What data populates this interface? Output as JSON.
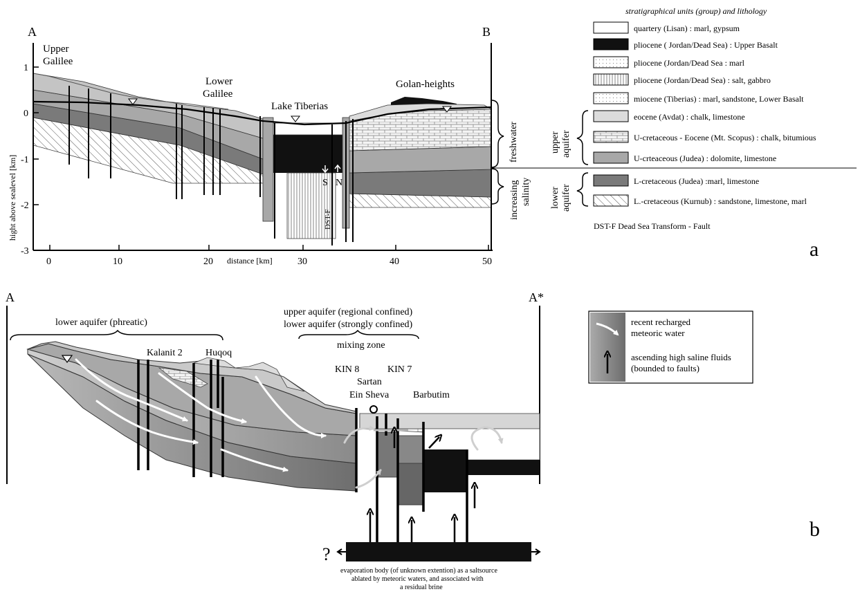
{
  "panel_a": {
    "label_a": "A",
    "label_b": "B",
    "panel_letter": "a",
    "y_axis_label": "hight above sealevel [km]",
    "x_axis_label": "distance [km]",
    "y_ticks": [
      "1",
      "0",
      "-1",
      "-2",
      "-3"
    ],
    "x_ticks": [
      "0",
      "10",
      "20",
      "30",
      "40",
      "50"
    ],
    "places": {
      "upper_galilee": [
        "Upper",
        "Galilee"
      ],
      "lower_galilee": [
        "Lower",
        "Galilee"
      ],
      "lake_tiberias": "Lake Tiberias",
      "golan_heights": "Golan-heights"
    },
    "fault_labels": {
      "s": "S",
      "n": "N",
      "dst": "DST-F"
    },
    "brace_labels": {
      "freshwater": "freshwater",
      "salinity": [
        "increasing",
        "salinity"
      ],
      "upper_aquifer": [
        "upper",
        "aquifer"
      ],
      "lower_aquifer": [
        "lower",
        "aquifer"
      ]
    },
    "legend_title": "stratigraphical units (group) and lithology",
    "legend": [
      {
        "text": "quartery (Lisan) : marl, gypsum",
        "swatch": "#ffffff",
        "pattern": "none"
      },
      {
        "text": "pliocene ( Jordan/Dead Sea) : Upper Basalt",
        "swatch": "#111111",
        "pattern": "none"
      },
      {
        "text": "pliocene (Jordan/Dead Sea : marl",
        "swatch": "#ffffff",
        "pattern": "dots"
      },
      {
        "text": "pliocene (Jordan/Dead Sea) : salt, gabbro",
        "swatch": "#ffffff",
        "pattern": "vlines"
      },
      {
        "text": "miocene (Tiberias) : marl, sandstone, Lower Basalt",
        "swatch": "#ffffff",
        "pattern": "dots"
      },
      {
        "text": "eocene (Avdat) : chalk, limestone",
        "swatch": "#dcdcdc",
        "pattern": "none"
      },
      {
        "text": "U-cretaceous - Eocene (Mt. Scopus) : chalk, bitumious",
        "swatch": "#ffffff",
        "pattern": "bricks"
      },
      {
        "text": "U-crteaceous (Judea) : dolomite, limestone",
        "swatch": "#a8a8a8",
        "pattern": "none"
      },
      {
        "text": "L-cretaceous (Judea) :marl, limestone",
        "swatch": "#7a7a7a",
        "pattern": "none"
      },
      {
        "text": "L.-cretaceous (Kurnub) : sandstone, limestone, marl",
        "swatch": "#ffffff",
        "pattern": "hatch"
      }
    ],
    "dst_note": "DST-F  Dead Sea Transform - Fault"
  },
  "panel_b": {
    "label_a": "A",
    "label_a_star": "A*",
    "panel_letter": "b",
    "lower_aquifer_phreatic": "lower aquifer (phreatic)",
    "upper_confined": "upper aquifer (regional  confined)",
    "lower_confined": "lower aquifer (strongly confined)",
    "mixing_zone": "mixing zone",
    "wells": {
      "kalanit": "Kalanit 2",
      "huqoq": "Huqoq",
      "kin8": "KIN 8",
      "kin7": "KIN 7",
      "sartan": "Sartan",
      "ein_sheva": "Ein Sheva",
      "barbutim": "Barbutim"
    },
    "legend": {
      "recharge": [
        "recent recharged",
        "meteoric water"
      ],
      "ascending": [
        "ascending high saline fluids",
        "(bounded to faults)"
      ]
    },
    "question_mark": "?",
    "evaporation_note": [
      "evaporation body  (of unknown extention) as a saltsource",
      "ablated by meteoric waters, and associated with",
      "a residual brine"
    ]
  }
}
